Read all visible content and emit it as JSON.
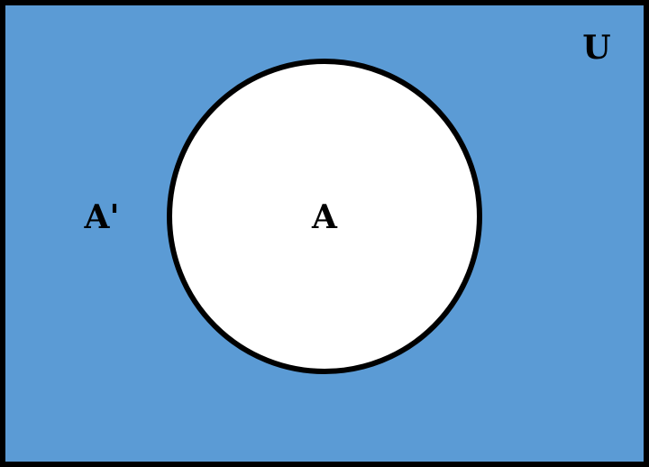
{
  "diagram": {
    "universe_label": "U",
    "set_label": "A",
    "complement_label": "A'",
    "complement_fill": "#5b9bd5",
    "set_fill": "#ffffff",
    "outline_color": "#000000"
  }
}
